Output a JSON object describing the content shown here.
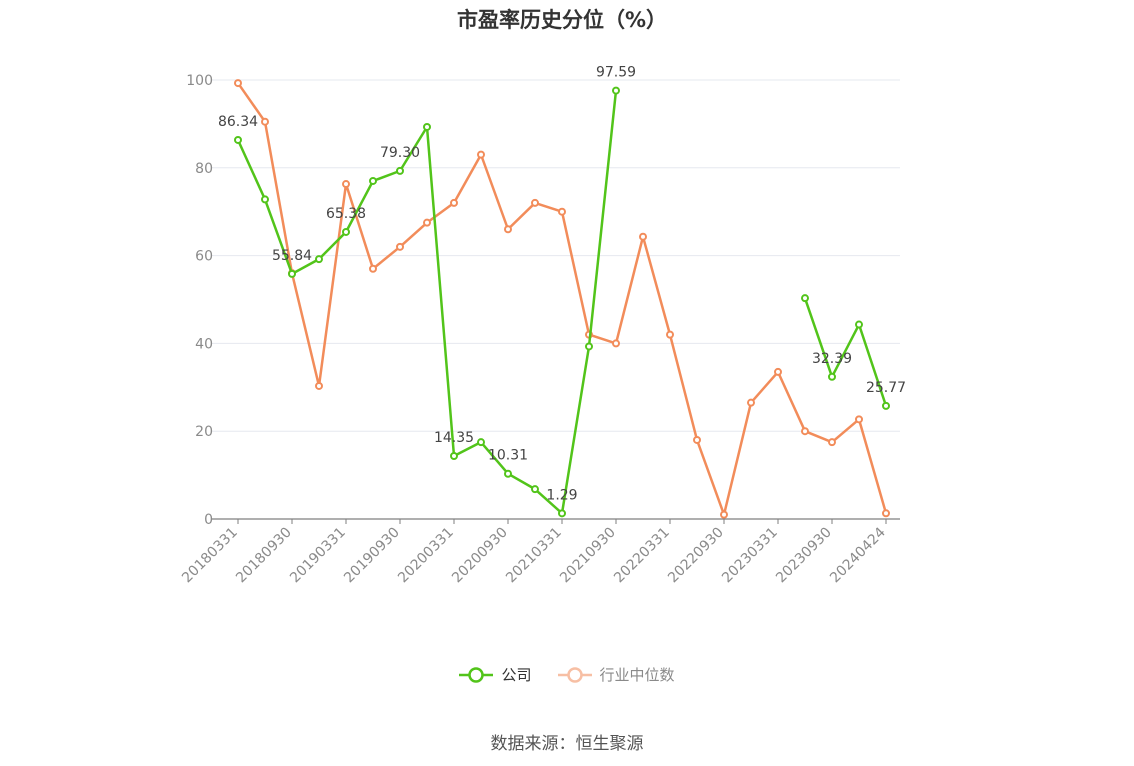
{
  "chart_data": {
    "type": "line",
    "title": "市盈率历史分位（%）",
    "source_text": "数据来源：恒生聚源",
    "ylim": [
      0,
      100
    ],
    "yticks": [
      0,
      20,
      40,
      60,
      80,
      100
    ],
    "grid": true,
    "legend_position": "bottom",
    "x": [
      "20180331",
      "20180630",
      "20180930",
      "20181231",
      "20190331",
      "20190630",
      "20190930",
      "20191231",
      "20200331",
      "20200630",
      "20200930",
      "20201231",
      "20210331",
      "20210630",
      "20210930",
      "20211231",
      "20220331",
      "20220630",
      "20220930",
      "20221231",
      "20230331",
      "20230630",
      "20230930",
      "20231231",
      "20240424"
    ],
    "x_tick_labels": [
      "20180331",
      "20180930",
      "20190331",
      "20190930",
      "20200331",
      "20200930",
      "20210331",
      "20210930",
      "20220331",
      "20220930",
      "20230331",
      "20230930",
      "20240424"
    ],
    "series": [
      {
        "name": "公司",
        "color": "#52c41a",
        "values": [
          86.34,
          72.8,
          55.84,
          59.2,
          65.38,
          77.0,
          79.3,
          89.3,
          14.35,
          17.5,
          10.31,
          6.8,
          1.29,
          39.3,
          97.59,
          null,
          null,
          null,
          null,
          null,
          null,
          50.3,
          32.39,
          44.3,
          25.77
        ],
        "labels": {
          "0": "86.34",
          "2": "55.84",
          "4": "65.38",
          "6": "79.30",
          "8": "14.35",
          "10": "10.31",
          "12": "1.29",
          "14": "97.59",
          "22": "32.39",
          "24": "25.77"
        }
      },
      {
        "name": "行业中位数",
        "color": "#f28c5a",
        "values": [
          99.3,
          90.5,
          56.0,
          30.3,
          76.3,
          57.0,
          62.0,
          67.5,
          72.0,
          83.0,
          66.0,
          72.0,
          70.0,
          42.0,
          40.0,
          64.3,
          42.0,
          18.0,
          1.0,
          26.5,
          33.5,
          20.0,
          17.5,
          22.7,
          1.3
        ]
      }
    ]
  }
}
